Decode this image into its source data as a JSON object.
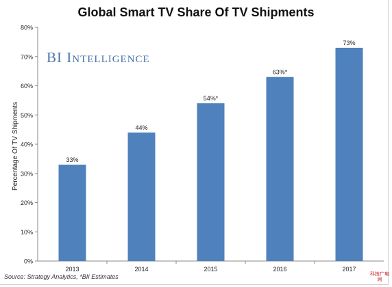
{
  "chart_data": {
    "type": "bar",
    "title": "Global Smart TV Share Of TV Shipments",
    "ylabel": "Percentage Of TV Shipments",
    "xlabel": "",
    "categories": [
      "2013",
      "2014",
      "2015",
      "2016",
      "2017"
    ],
    "values": [
      33,
      44,
      54,
      63,
      73
    ],
    "data_labels": [
      "33%",
      "44%",
      "54%*",
      "63%*",
      "73%"
    ],
    "ylim": [
      0,
      80
    ],
    "yticks": [
      0,
      10,
      20,
      30,
      40,
      50,
      60,
      70,
      80
    ],
    "ytick_labels": [
      "0%",
      "10%",
      "20%",
      "30%",
      "40%",
      "50%",
      "60%",
      "70%",
      "80%"
    ],
    "grid": false,
    "bar_color": "#4f81bd"
  },
  "brand": "BI Intelligence",
  "source": "Source: Strategy Analytics, *BII Estimates",
  "watermark": "科技广电网"
}
